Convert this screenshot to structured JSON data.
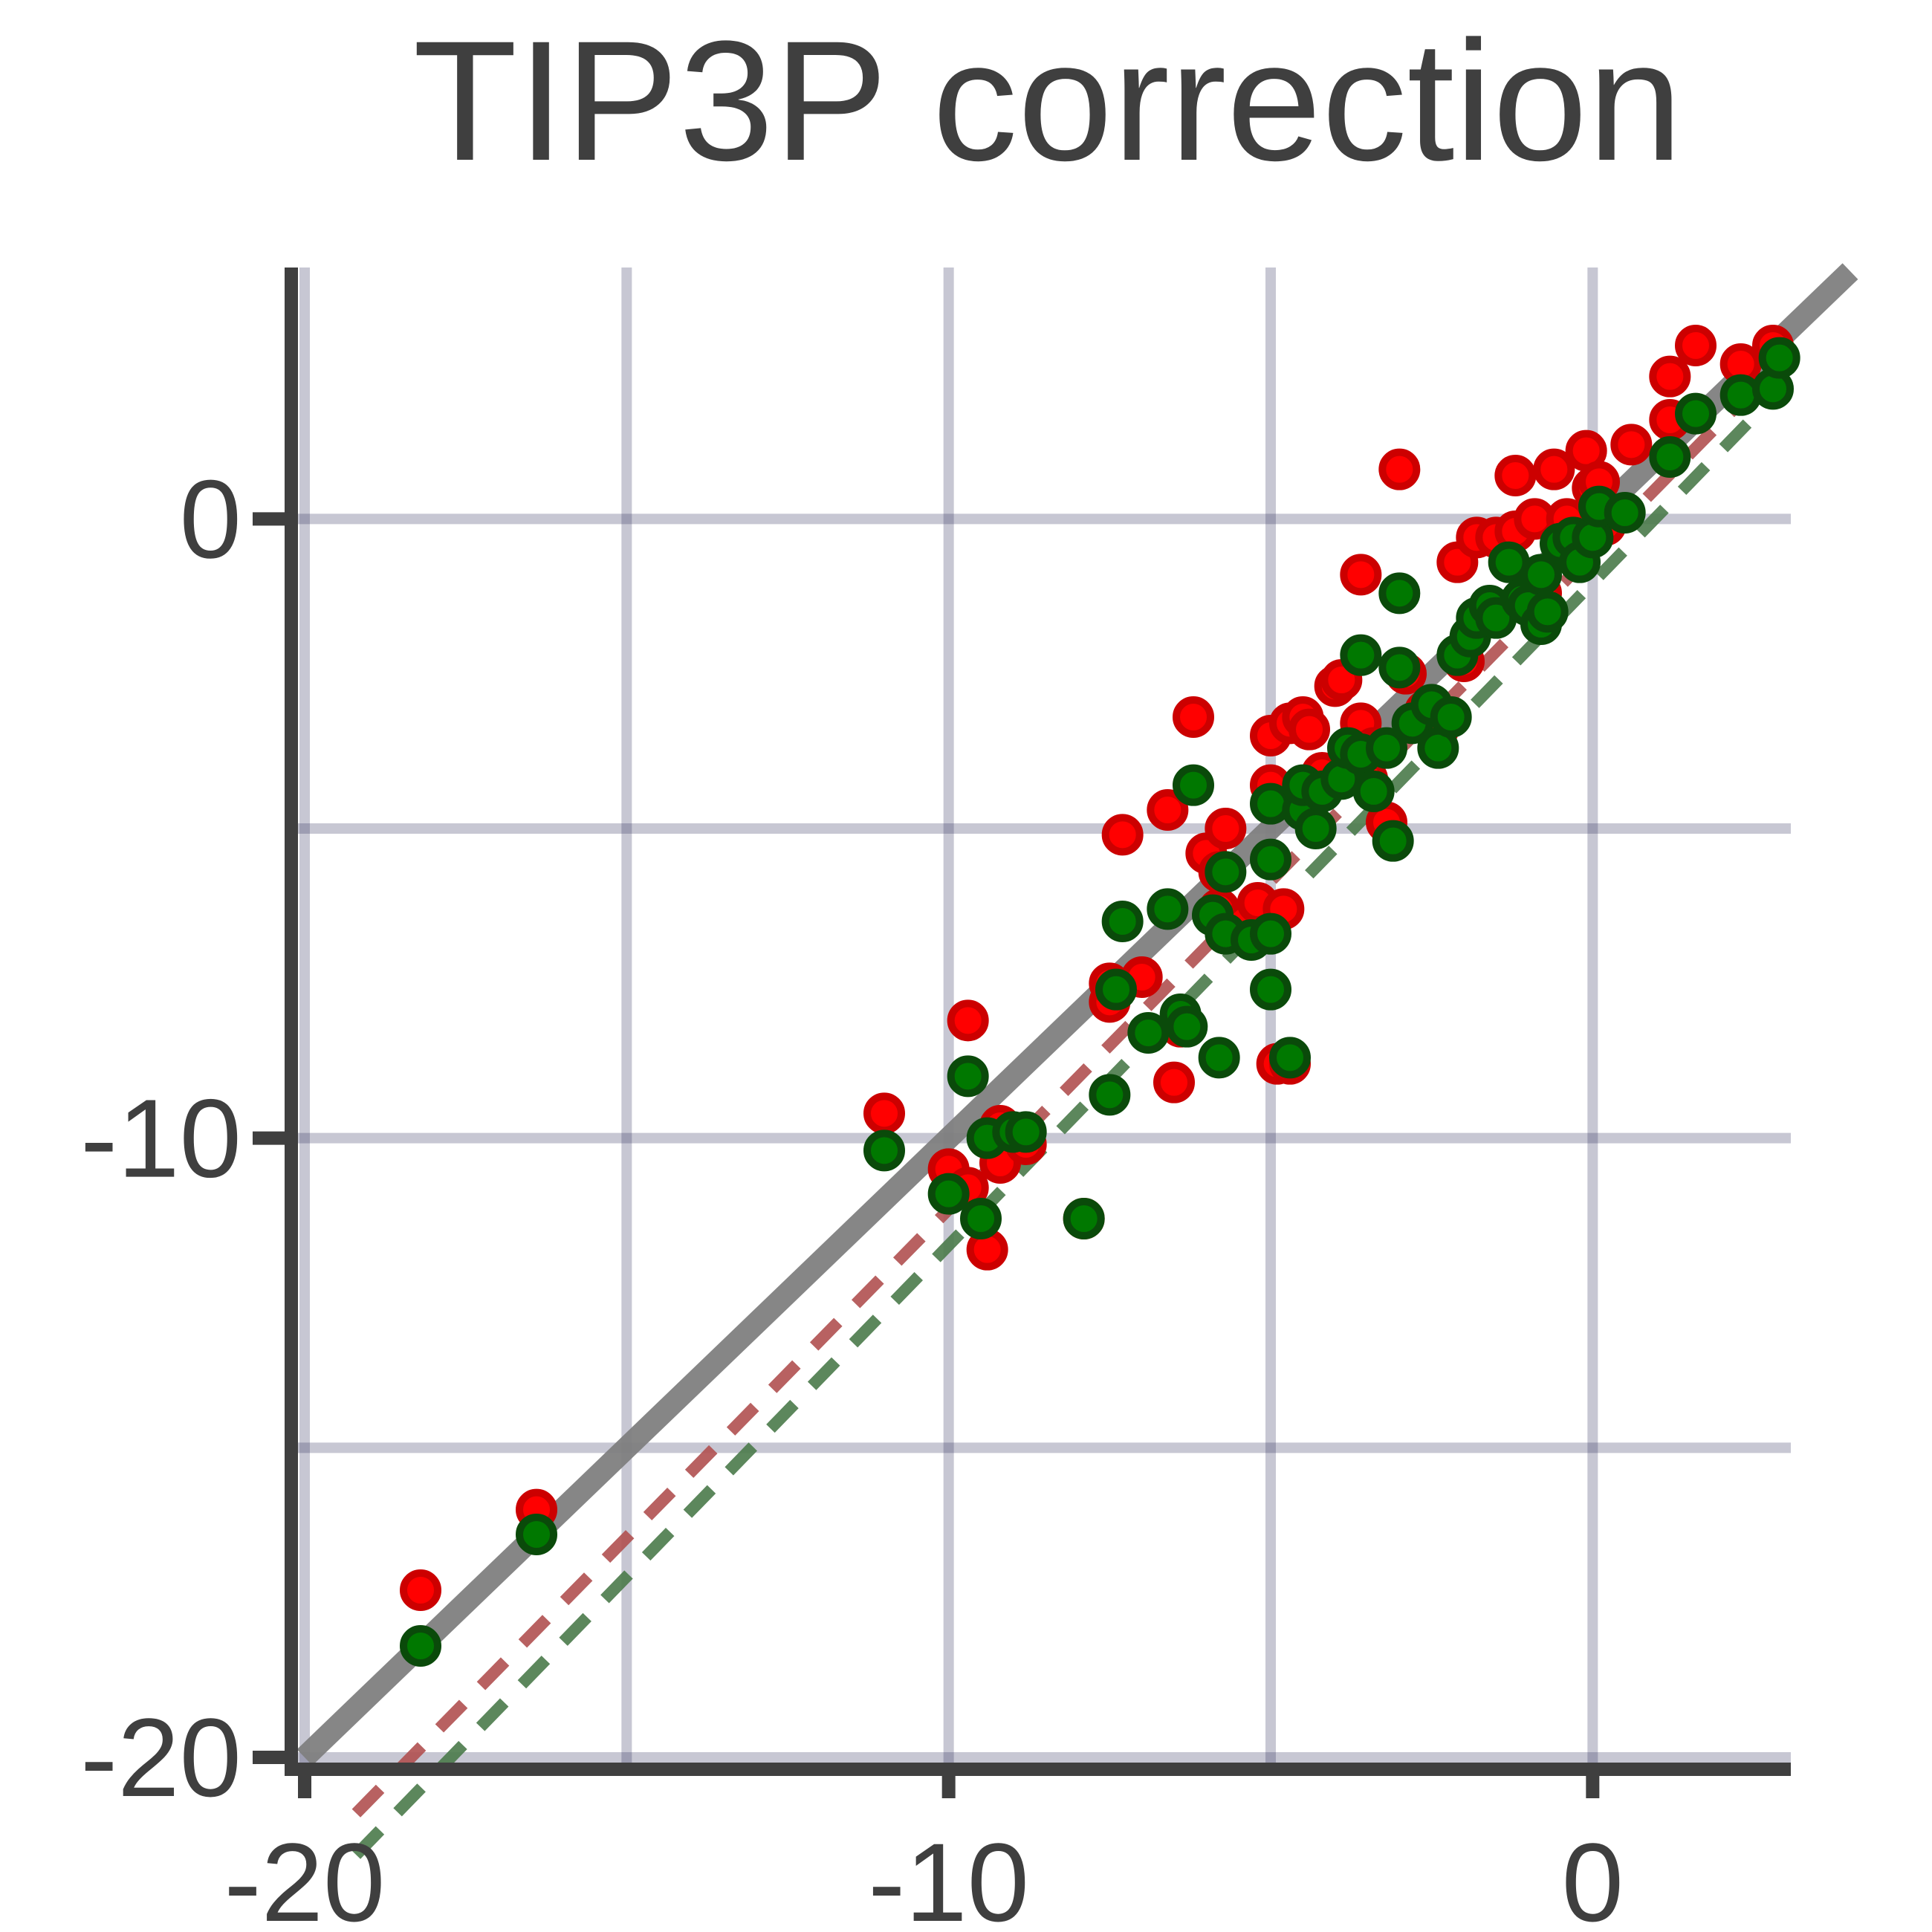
{
  "chart_data": {
    "type": "scatter",
    "title": "TIP3P correction",
    "xlabel": "",
    "ylabel": "",
    "xlim": [
      -20,
      4
    ],
    "ylim": [
      -20,
      4
    ],
    "x_ticks": [
      -20,
      -10,
      0
    ],
    "y_ticks": [
      -20,
      -10,
      0
    ],
    "x_tick_labels": [
      "-20",
      "-10",
      "0"
    ],
    "y_tick_labels": [
      "-20",
      "-10",
      "0"
    ],
    "x_grid": [
      -20,
      -15,
      -10,
      -5,
      0
    ],
    "y_grid": [
      -20,
      -15,
      -10,
      -5,
      0
    ],
    "grid": true,
    "reference_line": {
      "slope": 1,
      "intercept": 0,
      "color": "#808080"
    },
    "series": [
      {
        "color": "#ff0000",
        "edge_color": "#cc0000",
        "fit": {
          "slope": 1.06,
          "intercept": -0.55,
          "x_range": [
            -19.2,
            2.6
          ],
          "color": "#b05050"
        },
        "points": [
          [
            -18.2,
            -17.3
          ],
          [
            -16.4,
            -16.0
          ],
          [
            -11.0,
            -9.6
          ],
          [
            -10.0,
            -10.5
          ],
          [
            -9.7,
            -10.8
          ],
          [
            -9.7,
            -8.1
          ],
          [
            -9.4,
            -11.8
          ],
          [
            -9.2,
            -10.4
          ],
          [
            -9.2,
            -9.8
          ],
          [
            -8.8,
            -10.1
          ],
          [
            -7.9,
            -11.3
          ],
          [
            -7.5,
            -7.8
          ],
          [
            -7.5,
            -7.5
          ],
          [
            -7.3,
            -5.1
          ],
          [
            -7.0,
            -7.4
          ],
          [
            -6.6,
            -4.7
          ],
          [
            -6.5,
            -9.1
          ],
          [
            -6.4,
            -8.2
          ],
          [
            -6.2,
            -3.2
          ],
          [
            -6.0,
            -5.4
          ],
          [
            -5.8,
            -6.3
          ],
          [
            -5.8,
            -5.7
          ],
          [
            -5.7,
            -5.0
          ],
          [
            -5.4,
            -6.5
          ],
          [
            -5.2,
            -6.2
          ],
          [
            -5.0,
            -3.5
          ],
          [
            -5.0,
            -4.3
          ],
          [
            -4.9,
            -8.8
          ],
          [
            -4.8,
            -6.3
          ],
          [
            -4.7,
            -3.3
          ],
          [
            -4.7,
            -8.8
          ],
          [
            -4.5,
            -3.2
          ],
          [
            -4.4,
            -3.4
          ],
          [
            -4.2,
            -4.1
          ],
          [
            -4.0,
            -2.7
          ],
          [
            -3.9,
            -2.6
          ],
          [
            -3.6,
            -3.3
          ],
          [
            -3.6,
            -0.9
          ],
          [
            -3.5,
            -4.2
          ],
          [
            -3.4,
            -3.7
          ],
          [
            -3.2,
            -4.9
          ],
          [
            -3.0,
            0.8
          ],
          [
            -2.9,
            -2.5
          ],
          [
            -2.6,
            -3.1
          ],
          [
            -2.5,
            -3.2
          ],
          [
            -2.4,
            -3.4
          ],
          [
            -2.1,
            -0.7
          ],
          [
            -2.0,
            -2.3
          ],
          [
            -1.8,
            -0.3
          ],
          [
            -1.5,
            -0.3
          ],
          [
            -1.2,
            0.7
          ],
          [
            -1.2,
            -0.2
          ],
          [
            -0.9,
            0.0
          ],
          [
            -0.8,
            -1.2
          ],
          [
            -0.6,
            0.8
          ],
          [
            -0.4,
            0.0
          ],
          [
            -0.2,
            -0.5
          ],
          [
            -0.1,
            1.1
          ],
          [
            0.0,
            0.5
          ],
          [
            0.1,
            0.6
          ],
          [
            0.2,
            -0.1
          ],
          [
            0.6,
            1.2
          ],
          [
            1.2,
            2.3
          ],
          [
            1.2,
            1.6
          ],
          [
            1.6,
            2.8
          ],
          [
            2.3,
            2.5
          ],
          [
            2.8,
            2.8
          ]
        ]
      },
      {
        "color": "#007800",
        "edge_color": "#0a4a0a",
        "fit": {
          "slope": 1.07,
          "intercept": -1.03,
          "x_range": [
            -19.2,
            2.6
          ],
          "color": "#4a7a4a"
        },
        "points": [
          [
            -18.2,
            -18.2
          ],
          [
            -16.4,
            -16.4
          ],
          [
            -11.0,
            -10.2
          ],
          [
            -10.0,
            -10.9
          ],
          [
            -9.7,
            -9.0
          ],
          [
            -9.5,
            -11.3
          ],
          [
            -9.4,
            -10.0
          ],
          [
            -9.0,
            -9.9
          ],
          [
            -8.8,
            -9.9
          ],
          [
            -7.9,
            -11.3
          ],
          [
            -7.5,
            -9.3
          ],
          [
            -7.4,
            -7.6
          ],
          [
            -7.3,
            -6.5
          ],
          [
            -6.9,
            -8.3
          ],
          [
            -6.6,
            -6.3
          ],
          [
            -6.4,
            -8.0
          ],
          [
            -6.3,
            -8.2
          ],
          [
            -6.2,
            -4.3
          ],
          [
            -5.9,
            -6.4
          ],
          [
            -5.8,
            -8.7
          ],
          [
            -5.7,
            -5.7
          ],
          [
            -5.7,
            -6.7
          ],
          [
            -5.3,
            -6.8
          ],
          [
            -5.0,
            -4.6
          ],
          [
            -5.0,
            -5.5
          ],
          [
            -5.0,
            -6.7
          ],
          [
            -5.0,
            -7.6
          ],
          [
            -4.7,
            -8.7
          ],
          [
            -4.5,
            -4.7
          ],
          [
            -4.5,
            -4.3
          ],
          [
            -4.3,
            -5.0
          ],
          [
            -4.2,
            -4.4
          ],
          [
            -3.9,
            -4.2
          ],
          [
            -3.8,
            -3.7
          ],
          [
            -3.6,
            -3.8
          ],
          [
            -3.6,
            -2.2
          ],
          [
            -3.4,
            -4.4
          ],
          [
            -3.2,
            -3.7
          ],
          [
            -3.1,
            -5.2
          ],
          [
            -3.0,
            -2.4
          ],
          [
            -3.0,
            -1.2
          ],
          [
            -2.8,
            -3.3
          ],
          [
            -2.5,
            -3.0
          ],
          [
            -2.4,
            -3.7
          ],
          [
            -2.2,
            -3.2
          ],
          [
            -2.1,
            -2.2
          ],
          [
            -1.9,
            -1.9
          ],
          [
            -1.8,
            -1.6
          ],
          [
            -1.6,
            -1.4
          ],
          [
            -1.5,
            -1.6
          ],
          [
            -1.3,
            -0.7
          ],
          [
            -1.1,
            -1.3
          ],
          [
            -1.0,
            -1.4
          ],
          [
            -0.8,
            -0.9
          ],
          [
            -0.8,
            -1.7
          ],
          [
            -0.7,
            -1.5
          ],
          [
            -0.5,
            -0.4
          ],
          [
            -0.3,
            -0.3
          ],
          [
            -0.2,
            -0.7
          ],
          [
            0.0,
            -0.3
          ],
          [
            0.1,
            0.2
          ],
          [
            0.5,
            0.1
          ],
          [
            1.2,
            1.0
          ],
          [
            1.6,
            1.7
          ],
          [
            2.3,
            2.0
          ],
          [
            2.8,
            2.1
          ],
          [
            2.9,
            2.6
          ]
        ]
      }
    ]
  }
}
